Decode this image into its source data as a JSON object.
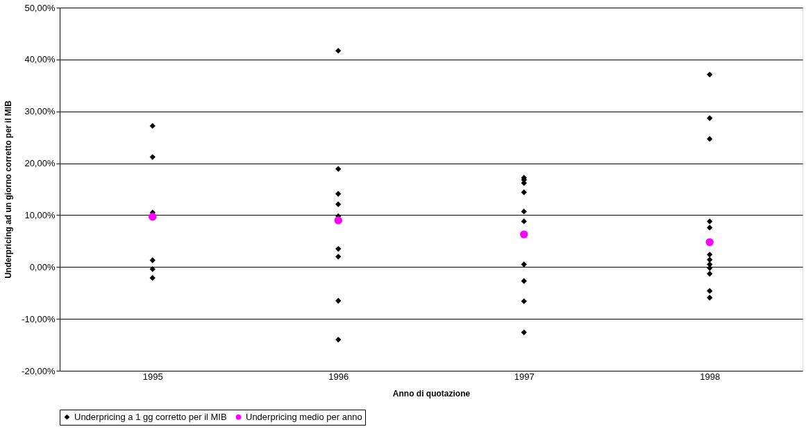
{
  "chart_data": {
    "type": "scatter",
    "xlabel": "Anno di quotazione",
    "ylabel": "Underpricing ad un giorno corretto per il MIB",
    "series": [
      {
        "name": "Underpricing a 1 gg corretto per il MIB",
        "color": "#000000",
        "marker": "diamond",
        "x": [
          1995,
          1995,
          1995,
          1995,
          1995,
          1995,
          1996,
          1996,
          1996,
          1996,
          1996,
          1996,
          1996,
          1996,
          1996,
          1997,
          1997,
          1997,
          1997,
          1997,
          1997,
          1997,
          1997,
          1997,
          1997,
          1998,
          1998,
          1998,
          1998,
          1998,
          1998,
          1998,
          1998,
          1998,
          1998,
          1998,
          1998
        ],
        "values": [
          27.2,
          21.2,
          10.5,
          1.3,
          -0.4,
          -2.1,
          41.7,
          18.9,
          14.1,
          12.1,
          9.8,
          3.5,
          2.0,
          -6.5,
          -14.0,
          17.2,
          16.8,
          16.2,
          14.4,
          10.7,
          8.8,
          0.5,
          -2.7,
          -6.6,
          -12.6,
          37.1,
          28.7,
          24.7,
          8.8,
          7.6,
          2.4,
          1.4,
          0.5,
          -0.2,
          -1.3,
          -4.6,
          -5.9
        ]
      },
      {
        "name": "Underpricing medio per anno",
        "color": "#ff00ff",
        "marker": "circle",
        "x": [
          1995,
          1996,
          1997,
          1998
        ],
        "values": [
          9.7,
          9.0,
          6.3,
          4.8
        ]
      }
    ],
    "xlim": [
      1994.5,
      1998.5
    ],
    "xticks": [
      1995,
      1996,
      1997,
      1998
    ],
    "ylim": [
      -20,
      50
    ],
    "yticks": [
      {
        "value": -20,
        "label": "-20,00%"
      },
      {
        "value": -10,
        "label": "-10,00%"
      },
      {
        "value": 0,
        "label": "0,00%"
      },
      {
        "value": 10,
        "label": "10,00%"
      },
      {
        "value": 20,
        "label": "20,00%"
      },
      {
        "value": 30,
        "label": "30,00%"
      },
      {
        "value": 40,
        "label": "40,00%"
      },
      {
        "value": 50,
        "label": "50,00%"
      }
    ],
    "grid": "y",
    "legend": "bottom"
  }
}
